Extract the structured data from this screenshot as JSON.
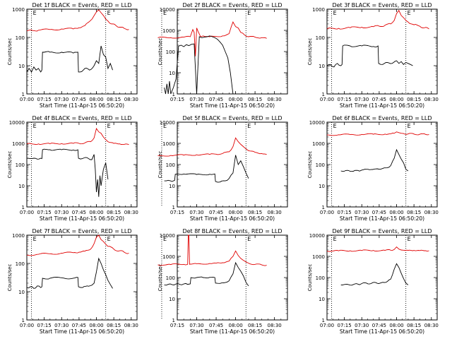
{
  "xlabel": "Start Time (11-Apr-15 06:50:20)",
  "ylabel": "Counts/sec",
  "x_tick_labels": [
    "07:00",
    "07:15",
    "07:30",
    "07:45",
    "08:00",
    "08:15",
    "08:30"
  ],
  "x_ticks_min": [
    0,
    15,
    30,
    45,
    60,
    75,
    90
  ],
  "colors": {
    "events": "#000000",
    "lld": "#e00000",
    "axis": "#000000"
  },
  "chart_data": [
    {
      "type": "line",
      "title": "Det 1f BLACK = Events, RED = LLD",
      "ylim": [
        1,
        1000
      ],
      "yscale": "log",
      "y_tick_labels": [
        "1",
        "10",
        "100",
        "1000"
      ],
      "xlim": [
        "07:00",
        "08:35"
      ],
      "markers_min": [
        4,
        68
      ],
      "letters": [
        "E",
        "E"
      ],
      "series": [
        {
          "name": "LLD",
          "color": "#e00000",
          "x": [
            0,
            5,
            10,
            20,
            30,
            40,
            45,
            50,
            55,
            60,
            62,
            64,
            66,
            68,
            70,
            73,
            77,
            80,
            84,
            88
          ],
          "y": [
            170,
            175,
            180,
            190,
            200,
            200,
            220,
            260,
            400,
            800,
            950,
            750,
            600,
            450,
            380,
            300,
            260,
            230,
            210,
            190
          ]
        },
        {
          "name": "Events",
          "color": "#000000",
          "x": [
            0,
            2,
            4,
            6,
            8,
            10,
            12,
            13,
            13.5,
            20,
            30,
            40,
            44,
            44.5,
            46,
            50,
            54,
            58,
            60,
            62,
            64,
            66,
            68,
            70,
            72,
            74
          ],
          "y": [
            6,
            8,
            6,
            9,
            7,
            8,
            6,
            7,
            30,
            30,
            30,
            28,
            30,
            6,
            6,
            8,
            7,
            10,
            15,
            12,
            50,
            25,
            20,
            8,
            12,
            7
          ]
        }
      ]
    },
    {
      "type": "line",
      "title": "Det 2f BLACK = Events, RED = LLD",
      "ylim": [
        1,
        10000
      ],
      "yscale": "log",
      "y_tick_labels": [
        "1",
        "10",
        "100",
        "1000",
        "10000"
      ],
      "xlim": [
        "07:15",
        "08:40"
      ],
      "markers_min": [
        3,
        68
      ],
      "letters": [
        "E",
        "E"
      ],
      "series": [
        {
          "name": "LLD",
          "color": "#e00000",
          "x": [
            0,
            10,
            20,
            25,
            27,
            28,
            29,
            30,
            31,
            33,
            35,
            40,
            50,
            55,
            58,
            60,
            62,
            64,
            67,
            70,
            75,
            80,
            84
          ],
          "y": [
            450,
            450,
            480,
            500,
            1100,
            800,
            60,
            1300,
            900,
            500,
            550,
            500,
            550,
            700,
            2500,
            1500,
            1300,
            800,
            600,
            500,
            480,
            450,
            420
          ]
        },
        {
          "name": "Events",
          "color": "#000000",
          "x": [
            5,
            6,
            7,
            8,
            9,
            10,
            12,
            14,
            16,
            18,
            20,
            22,
            24,
            26,
            28,
            30,
            32,
            34,
            36,
            38,
            40,
            42,
            44,
            46,
            48,
            50,
            52,
            54,
            56,
            58,
            60,
            62,
            64,
            66
          ],
          "y": [
            2,
            1,
            3,
            1,
            4,
            1,
            2,
            5,
            180,
            200,
            170,
            210,
            190,
            220,
            230,
            1,
            500,
            450,
            480,
            500,
            550,
            500,
            450,
            380,
            280,
            200,
            100,
            50,
            10,
            1,
            1,
            1,
            1,
            1
          ]
        }
      ]
    },
    {
      "type": "line",
      "title": "Det 3f BLACK = Events, RED = LLD",
      "ylim": [
        1,
        1000
      ],
      "yscale": "log",
      "y_tick_labels": [
        "1",
        "10",
        "100",
        "1000"
      ],
      "xlim": [
        "07:00",
        "08:35"
      ],
      "markers_min": [
        4,
        68
      ],
      "letters": [
        "E",
        "E"
      ],
      "series": [
        {
          "name": "LLD",
          "color": "#e00000",
          "x": [
            0,
            10,
            20,
            30,
            40,
            45,
            50,
            55,
            58,
            60,
            62,
            64,
            66,
            68,
            70,
            75,
            80,
            84,
            88
          ],
          "y": [
            200,
            210,
            220,
            230,
            240,
            250,
            270,
            300,
            400,
            700,
            900,
            600,
            500,
            400,
            350,
            280,
            250,
            220,
            200
          ]
        },
        {
          "name": "Events",
          "color": "#000000",
          "x": [
            0,
            3,
            6,
            9,
            12,
            13,
            13.5,
            20,
            30,
            40,
            44,
            44.5,
            48,
            52,
            56,
            60,
            62,
            64,
            66,
            68,
            70,
            72,
            74
          ],
          "y": [
            10,
            11,
            9,
            12,
            10,
            11,
            50,
            50,
            50,
            48,
            50,
            12,
            11,
            13,
            12,
            15,
            12,
            14,
            11,
            13,
            12,
            11,
            10
          ]
        }
      ]
    },
    {
      "type": "line",
      "title": "Det 4f BLACK = Events, RED = LLD",
      "ylim": [
        1,
        10000
      ],
      "yscale": "log",
      "y_tick_labels": [
        "1",
        "10",
        "100",
        "1000",
        "10000"
      ],
      "xlim": [
        "07:00",
        "08:35"
      ],
      "markers_min": [
        4,
        68
      ],
      "letters": [
        "E",
        "E"
      ],
      "series": [
        {
          "name": "LLD",
          "color": "#e00000",
          "x": [
            0,
            10,
            20,
            30,
            40,
            45,
            50,
            55,
            58,
            60,
            62,
            64,
            66,
            68,
            70,
            75,
            80,
            84,
            88
          ],
          "y": [
            950,
            950,
            960,
            980,
            1000,
            1000,
            1050,
            1200,
            1800,
            5000,
            3500,
            3000,
            2000,
            1500,
            1200,
            1000,
            950,
            900,
            880
          ]
        },
        {
          "name": "Events",
          "color": "#000000",
          "x": [
            0,
            3,
            6,
            9,
            12,
            13,
            13.5,
            20,
            30,
            40,
            44,
            44.5,
            48,
            52,
            56,
            58,
            59,
            60,
            61,
            62,
            63,
            64,
            66,
            68,
            70
          ],
          "y": [
            200,
            190,
            200,
            180,
            200,
            190,
            500,
            500,
            500,
            490,
            500,
            200,
            190,
            210,
            170,
            300,
            60,
            5,
            20,
            3,
            30,
            10,
            60,
            120,
            20
          ]
        }
      ]
    },
    {
      "type": "line",
      "title": "Det 5f BLACK = Events, RED = LLD",
      "ylim": [
        1,
        10000
      ],
      "yscale": "log",
      "y_tick_labels": [
        "1",
        "10",
        "100",
        "1000",
        "10000"
      ],
      "xlim": [
        "07:15",
        "08:40"
      ],
      "markers_min": [
        3,
        68
      ],
      "letters": [
        "E",
        "E"
      ],
      "series": [
        {
          "name": "LLD",
          "color": "#e00000",
          "x": [
            0,
            10,
            20,
            30,
            40,
            45,
            50,
            55,
            58,
            60,
            62,
            64,
            66,
            68,
            70,
            75,
            80,
            84
          ],
          "y": [
            260,
            270,
            280,
            290,
            300,
            310,
            330,
            400,
            700,
            1800,
            1200,
            900,
            700,
            550,
            450,
            380,
            330,
            300
          ]
        },
        {
          "name": "Events",
          "color": "#000000",
          "x": [
            5,
            8,
            11,
            13,
            13.5,
            20,
            30,
            40,
            44,
            44.5,
            48,
            52,
            55,
            58,
            60,
            62,
            64,
            66,
            68,
            70
          ],
          "y": [
            17,
            18,
            16,
            18,
            35,
            36,
            34,
            35,
            36,
            16,
            15,
            17,
            22,
            40,
            280,
            100,
            150,
            80,
            40,
            22
          ]
        }
      ]
    },
    {
      "type": "line",
      "title": "Det 6f BLACK = Events, RED = LLD",
      "ylim": [
        1,
        10000
      ],
      "yscale": "log",
      "y_tick_labels": [
        "1",
        "10",
        "100",
        "1000",
        "10000"
      ],
      "xlim": [
        "07:00",
        "08:35"
      ],
      "markers_min": [
        4,
        68
      ],
      "letters": [
        "E",
        "E"
      ],
      "series": [
        {
          "name": "LLD",
          "color": "#e00000",
          "x": [
            0,
            10,
            20,
            30,
            40,
            50,
            55,
            58,
            60,
            62,
            64,
            66,
            70,
            75,
            80,
            85,
            88
          ],
          "y": [
            2500,
            2550,
            2600,
            2650,
            2700,
            2750,
            2800,
            3000,
            3500,
            3200,
            3000,
            2900,
            2800,
            2750,
            2700,
            2650,
            2600
          ]
        },
        {
          "name": "Events",
          "color": "#000000",
          "x": [
            12,
            16,
            20,
            24,
            28,
            30,
            34,
            38,
            42,
            46,
            48,
            52,
            55,
            58,
            60,
            62,
            64,
            66,
            68,
            70
          ],
          "y": [
            50,
            52,
            48,
            53,
            49,
            55,
            60,
            58,
            62,
            60,
            65,
            70,
            90,
            200,
            500,
            300,
            180,
            120,
            60,
            50
          ]
        }
      ]
    },
    {
      "type": "line",
      "title": "Det 7f BLACK = Events, RED = LLD",
      "ylim": [
        1,
        1000
      ],
      "yscale": "log",
      "y_tick_labels": [
        "1",
        "10",
        "100",
        "1000"
      ],
      "xlim": [
        "07:00",
        "08:35"
      ],
      "markers_min": [
        4,
        68
      ],
      "letters": [
        "E",
        "E"
      ],
      "series": [
        {
          "name": "LLD",
          "color": "#e00000",
          "x": [
            0,
            10,
            20,
            30,
            40,
            45,
            50,
            55,
            58,
            60,
            62,
            64,
            66,
            68,
            70,
            75,
            80,
            84,
            88
          ],
          "y": [
            200,
            210,
            220,
            230,
            240,
            250,
            270,
            320,
            500,
            850,
            1000,
            700,
            600,
            480,
            400,
            320,
            280,
            250,
            230
          ]
        },
        {
          "name": "Events",
          "color": "#000000",
          "x": [
            0,
            3,
            6,
            9,
            12,
            13,
            13.5,
            20,
            30,
            40,
            44,
            44.5,
            48,
            52,
            56,
            58,
            60,
            62,
            64,
            66,
            68,
            70,
            72,
            74
          ],
          "y": [
            14,
            15,
            13,
            16,
            14,
            15,
            30,
            30,
            31,
            30,
            32,
            15,
            14,
            16,
            17,
            20,
            50,
            150,
            100,
            60,
            40,
            25,
            18,
            13
          ]
        }
      ]
    },
    {
      "type": "line",
      "title": "Det 8f BLACK = Events, RED = LLD",
      "ylim": [
        1,
        10000
      ],
      "yscale": "log",
      "y_tick_labels": [
        "1",
        "10",
        "100",
        "1000",
        "10000"
      ],
      "xlim": [
        "07:15",
        "08:40"
      ],
      "markers_min": [
        3,
        68
      ],
      "letters": [
        "E",
        "E"
      ],
      "series": [
        {
          "name": "LLD",
          "color": "#e00000",
          "x": [
            0,
            10,
            20,
            23,
            23.5,
            24,
            24.5,
            25,
            30,
            40,
            45,
            50,
            55,
            58,
            60,
            62,
            64,
            66,
            68,
            70,
            75,
            80,
            84
          ],
          "y": [
            400,
            410,
            420,
            420,
            10000,
            10000,
            420,
            430,
            450,
            460,
            480,
            500,
            600,
            1000,
            1800,
            1100,
            800,
            650,
            550,
            480,
            420,
            400,
            380
          ]
        },
        {
          "name": "Events",
          "color": "#000000",
          "x": [
            5,
            8,
            11,
            14,
            17,
            20,
            23,
            25,
            25.5,
            30,
            35,
            40,
            44,
            44.5,
            48,
            52,
            55,
            58,
            60,
            62,
            64,
            66,
            68,
            70
          ],
          "y": [
            45,
            48,
            46,
            50,
            47,
            50,
            48,
            50,
            100,
            100,
            100,
            102,
            100,
            55,
            53,
            58,
            70,
            150,
            500,
            300,
            200,
            120,
            60,
            40
          ]
        }
      ]
    },
    {
      "type": "line",
      "title": "Det 9f BLACK = Events, RED = LLD",
      "ylim": [
        1,
        10000
      ],
      "yscale": "log",
      "y_tick_labels": [
        "1",
        "10",
        "100",
        "1000",
        "10000"
      ],
      "xlim": [
        "07:00",
        "08:35"
      ],
      "markers_min": [
        4,
        68
      ],
      "letters": [
        "E",
        "E"
      ],
      "series": [
        {
          "name": "LLD",
          "color": "#e00000",
          "x": [
            0,
            10,
            20,
            30,
            40,
            50,
            55,
            58,
            60,
            62,
            64,
            66,
            70,
            75,
            80,
            85,
            88
          ],
          "y": [
            1800,
            1820,
            1850,
            1880,
            1900,
            1920,
            1950,
            2100,
            2800,
            2200,
            2000,
            1950,
            1920,
            1900,
            1880,
            1860,
            1850
          ]
        },
        {
          "name": "Events",
          "color": "#000000",
          "x": [
            12,
            16,
            20,
            24,
            28,
            30,
            34,
            38,
            42,
            46,
            48,
            52,
            55,
            58,
            60,
            62,
            64,
            66,
            68,
            70
          ],
          "y": [
            45,
            48,
            44,
            50,
            46,
            52,
            55,
            52,
            58,
            55,
            60,
            65,
            85,
            250,
            450,
            300,
            160,
            90,
            55,
            45
          ]
        }
      ]
    }
  ]
}
